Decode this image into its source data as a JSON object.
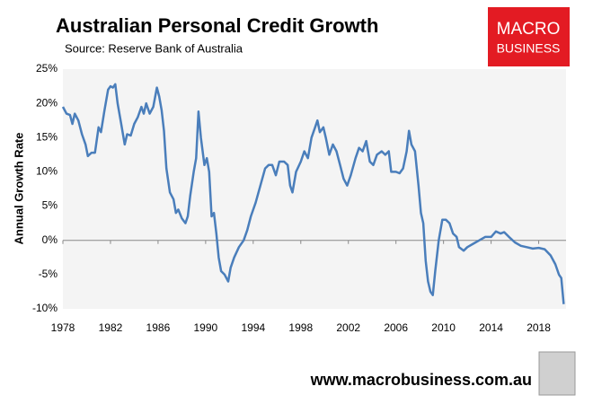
{
  "chart_data": {
    "type": "line",
    "title": "Australian Personal Credit Growth",
    "subtitle": "Source: Reserve Bank of Australia",
    "logo": [
      "MACRO",
      "BUSINESS"
    ],
    "footer": "www.macrobusiness.com.au",
    "y_label": "Annual Growth Rate",
    "color": "#4a7ebb",
    "x": [
      1978.0,
      1978.3,
      1978.6,
      1978.8,
      1979.0,
      1979.3,
      1979.6,
      1979.9,
      1980.1,
      1980.4,
      1980.7,
      1981.0,
      1981.2,
      1981.5,
      1981.8,
      1982.0,
      1982.2,
      1982.4,
      1982.6,
      1982.9,
      1983.2,
      1983.4,
      1983.7,
      1984.0,
      1984.3,
      1984.6,
      1984.8,
      1985.0,
      1985.3,
      1985.6,
      1985.9,
      1986.1,
      1986.3,
      1986.5,
      1986.7,
      1987.0,
      1987.3,
      1987.5,
      1987.7,
      1988.0,
      1988.3,
      1988.5,
      1988.7,
      1989.0,
      1989.2,
      1989.4,
      1989.6,
      1989.9,
      1990.1,
      1990.3,
      1990.5,
      1990.7,
      1990.9,
      1991.1,
      1991.3,
      1991.6,
      1991.9,
      1992.1,
      1992.4,
      1992.8,
      1993.2,
      1993.5,
      1993.8,
      1994.2,
      1994.6,
      1995.0,
      1995.3,
      1995.6,
      1995.9,
      1996.2,
      1996.6,
      1996.9,
      1997.1,
      1997.3,
      1997.6,
      1998.0,
      1998.3,
      1998.6,
      1998.9,
      1999.2,
      1999.4,
      1999.6,
      1999.9,
      2000.1,
      2000.4,
      2000.7,
      2001.0,
      2001.3,
      2001.6,
      2001.9,
      2002.2,
      2002.6,
      2002.9,
      2003.2,
      2003.5,
      2003.8,
      2004.1,
      2004.4,
      2004.8,
      2005.1,
      2005.4,
      2005.6,
      2006.0,
      2006.3,
      2006.6,
      2006.9,
      2007.1,
      2007.3,
      2007.6,
      2007.9,
      2008.1,
      2008.3,
      2008.5,
      2008.7,
      2008.9,
      2009.1,
      2009.3,
      2009.6,
      2009.9,
      2010.2,
      2010.5,
      2010.8,
      2011.1,
      2011.3,
      2011.7,
      2012.0,
      2012.5,
      2013.0,
      2013.5,
      2014.0,
      2014.4,
      2014.8,
      2015.1,
      2015.5,
      2016.0,
      2016.5,
      2017.0,
      2017.5,
      2018.0,
      2018.5,
      2019.0,
      2019.4,
      2019.7,
      2019.9,
      2020.1
    ],
    "values": [
      19.5,
      18.5,
      18.3,
      17,
      18.5,
      17.5,
      15.5,
      14,
      12.3,
      12.8,
      12.8,
      16.5,
      15.8,
      19,
      22,
      22.5,
      22.3,
      22.8,
      20,
      17,
      14,
      15.5,
      15.3,
      17,
      18,
      19.5,
      18.5,
      20,
      18.5,
      19.5,
      22.3,
      21,
      19,
      16,
      10.5,
      7,
      6,
      4,
      4.5,
      3.2,
      2.5,
      3.5,
      6.5,
      10,
      12,
      18.8,
      15,
      11,
      12,
      10,
      3.5,
      4,
      1,
      -2.5,
      -4.5,
      -5,
      -6,
      -4,
      -2.5,
      -1,
      0,
      1.5,
      3.5,
      5.5,
      8,
      10.5,
      11,
      11,
      9.5,
      11.5,
      11.5,
      11,
      8,
      7,
      10,
      11.5,
      13,
      12,
      15,
      16.5,
      17.5,
      15.8,
      16.5,
      15,
      12.5,
      14,
      13,
      11,
      9,
      8,
      9.5,
      12,
      13.5,
      13,
      14.5,
      11.5,
      11,
      12.5,
      13,
      12.5,
      13,
      10,
      10,
      9.8,
      10.5,
      13,
      16,
      14,
      13,
      8,
      4,
      2.5,
      -3,
      -6,
      -7.5,
      -8,
      -4.5,
      0,
      3,
      3,
      2.5,
      1,
      0.5,
      -1,
      -1.5,
      -1,
      -0.5,
      0,
      0.5,
      0.5,
      1.3,
      1,
      1.2,
      0.5,
      -0.3,
      -0.8,
      -1,
      -1.2,
      -1.1,
      -1.3,
      -2.2,
      -3.5,
      -5,
      -5.5,
      -9.3
    ],
    "xlim": [
      1978,
      2020.3
    ],
    "xticks": [
      1978,
      1982,
      1986,
      1990,
      1994,
      1998,
      2002,
      2006,
      2010,
      2014,
      2018
    ],
    "ylim": [
      -10,
      25
    ],
    "yticks": [
      {
        "value": -10,
        "label": "-10%"
      },
      {
        "value": -5,
        "label": "-5%"
      },
      {
        "value": 0,
        "label": "0%"
      },
      {
        "value": 5,
        "label": "5%"
      },
      {
        "value": 10,
        "label": "10%"
      },
      {
        "value": 15,
        "label": "15%"
      },
      {
        "value": 20,
        "label": "20%"
      },
      {
        "value": 25,
        "label": "25%"
      }
    ],
    "zero_line": true,
    "grid": false
  }
}
